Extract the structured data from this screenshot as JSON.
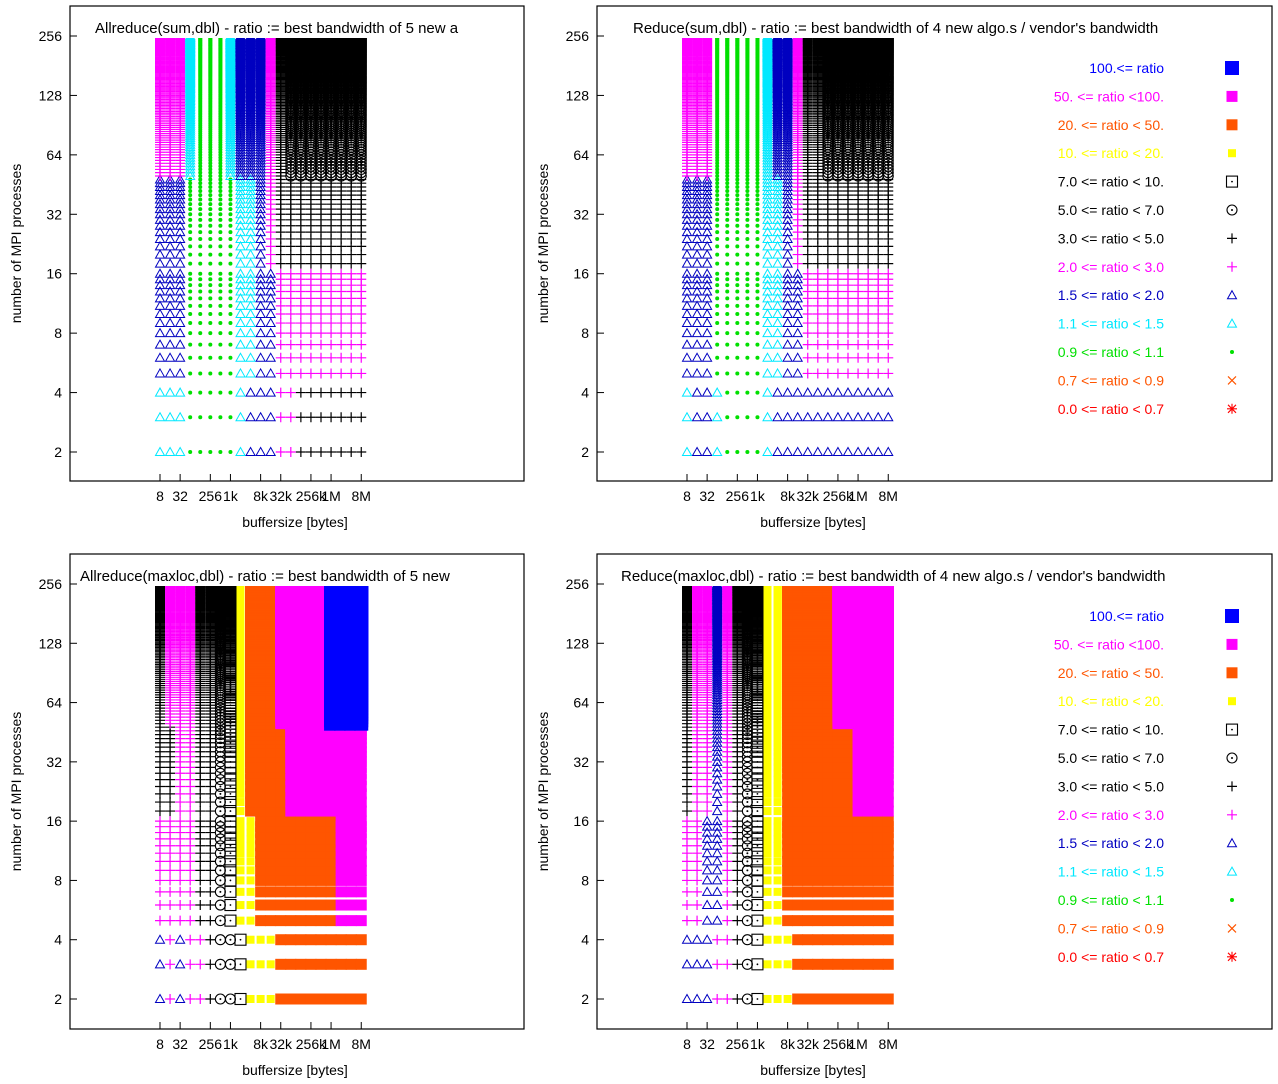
{
  "legend": [
    {
      "label": "100.<= ratio",
      "color": "#0000ff",
      "symbol": "filled-square-large"
    },
    {
      "label": "50. <= ratio <100.",
      "color": "#ff00ff",
      "symbol": "filled-square"
    },
    {
      "label": "20. <= ratio < 50.",
      "color": "#ff5500",
      "symbol": "filled-square"
    },
    {
      "label": "10. <= ratio < 20.",
      "color": "#ffff00",
      "symbol": "filled-square-small"
    },
    {
      "label": "7.0 <= ratio < 10.",
      "color": "#000000",
      "symbol": "dotted-box"
    },
    {
      "label": "5.0 <= ratio < 7.0",
      "color": "#000000",
      "symbol": "circle-dot"
    },
    {
      "label": "3.0 <= ratio < 5.0",
      "color": "#000000",
      "symbol": "plus"
    },
    {
      "label": "2.0 <= ratio < 3.0",
      "color": "#ff00ff",
      "symbol": "plus"
    },
    {
      "label": "1.5 <= ratio < 2.0",
      "color": "#0000c0",
      "symbol": "triangle"
    },
    {
      "label": "1.1 <= ratio < 1.5",
      "color": "#00e8ff",
      "symbol": "triangle"
    },
    {
      "label": "0.9 <= ratio < 1.1",
      "color": "#00e000",
      "symbol": "dot"
    },
    {
      "label": "0.7 <= ratio < 0.9",
      "color": "#ff5500",
      "symbol": "cross"
    },
    {
      "label": "0.0 <= ratio < 0.7",
      "color": "#ff0000",
      "symbol": "star"
    }
  ],
  "chart_data": [
    {
      "type": "scatter",
      "title": "Allreduce(sum,dbl)  -  ratio := best bandwidth of 5 new a",
      "xlabel": "buffersize [bytes]",
      "ylabel": "number of MPI processes",
      "xscale": "log2",
      "yscale": "log2",
      "xticks": [
        "8",
        "32",
        "256",
        "1k",
        "8k",
        "32k",
        "256k",
        "1M",
        "8M"
      ],
      "yticks": [
        "2",
        "4",
        "8",
        "16",
        "32",
        "64",
        "128",
        "256"
      ],
      "x": [
        "8",
        "16",
        "32",
        "64",
        "128",
        "256",
        "512",
        "1k",
        "2k",
        "4k",
        "8k",
        "16k",
        "32k",
        "64k",
        "128k",
        "256k",
        "512k",
        "1M",
        "2M",
        "4M",
        "8M"
      ],
      "bands": [
        {
          "p_max": 4,
          "classes": [
            "1.1-1.5",
            "1.1-1.5",
            "1.1-1.5",
            "0.9-1.1",
            "0.9-1.1",
            "0.9-1.1",
            "0.9-1.1",
            "0.9-1.1",
            "1.1-1.5",
            "1.5-2.0",
            "1.5-2.0",
            "1.5-2.0",
            "2.0-3.0",
            "2.0-3.0",
            "3.0-5.0",
            "3.0-5.0",
            "3.0-5.0",
            "3.0-5.0",
            "3.0-5.0",
            "3.0-5.0",
            "3.0-5.0"
          ]
        },
        {
          "p_max": 16,
          "classes": [
            "1.5-2.0",
            "1.5-2.0",
            "1.5-2.0",
            "0.9-1.1",
            "0.9-1.1",
            "0.9-1.1",
            "0.9-1.1",
            "0.9-1.1",
            "1.1-1.5",
            "1.1-1.5",
            "1.5-2.0",
            "1.5-2.0",
            "2.0-3.0",
            "2.0-3.0",
            "2.0-3.0",
            "2.0-3.0",
            "2.0-3.0",
            "2.0-3.0",
            "2.0-3.0",
            "2.0-3.0",
            "2.0-3.0"
          ]
        },
        {
          "p_max": 48,
          "classes": [
            "1.5-2.0",
            "1.5-2.0",
            "1.5-2.0",
            "0.9-1.1",
            "0.9-1.1",
            "0.9-1.1",
            "0.9-1.1",
            "0.9-1.1",
            "1.1-1.5",
            "1.1-1.5",
            "1.5-2.0",
            "2.0-3.0",
            "3.0-5.0",
            "3.0-5.0",
            "3.0-5.0",
            "3.0-5.0",
            "3.0-5.0",
            "3.0-5.0",
            "3.0-5.0",
            "3.0-5.0",
            "3.0-5.0"
          ]
        },
        {
          "p_max": 256,
          "classes": [
            "2.0-3.0",
            "2.0-3.0",
            "2.0-3.0",
            "1.1-1.5",
            "0.9-1.1",
            "0.9-1.1",
            "0.9-1.1",
            "1.1-1.5",
            "1.5-2.0",
            "1.5-2.0",
            "1.5-2.0",
            "2.0-3.0",
            "3.0-5.0",
            "5.0-7.0",
            "5.0-7.0",
            "5.0-7.0",
            "5.0-7.0",
            "5.0-7.0",
            "5.0-7.0",
            "5.0-7.0",
            "5.0-7.0"
          ]
        }
      ]
    },
    {
      "type": "scatter",
      "title": "Reduce(sum,dbl)  -  ratio := best bandwidth of 4 new algo.s / vendor's bandwidth",
      "xlabel": "buffersize [bytes]",
      "ylabel": "number of MPI processes",
      "xscale": "log2",
      "yscale": "log2",
      "xticks": [
        "8",
        "32",
        "256",
        "1k",
        "8k",
        "32k",
        "256k",
        "1M",
        "8M"
      ],
      "yticks": [
        "2",
        "4",
        "8",
        "16",
        "32",
        "64",
        "128",
        "256"
      ],
      "x": [
        "8",
        "16",
        "32",
        "64",
        "128",
        "256",
        "512",
        "1k",
        "2k",
        "4k",
        "8k",
        "16k",
        "32k",
        "64k",
        "128k",
        "256k",
        "512k",
        "1M",
        "2M",
        "4M",
        "8M"
      ],
      "bands": [
        {
          "p_max": 4,
          "classes": [
            "1.1-1.5",
            "1.5-2.0",
            "1.5-2.0",
            "1.1-1.5",
            "0.9-1.1",
            "0.9-1.1",
            "0.9-1.1",
            "0.9-1.1",
            "1.1-1.5",
            "1.5-2.0",
            "1.5-2.0",
            "1.5-2.0",
            "1.5-2.0",
            "1.5-2.0",
            "1.5-2.0",
            "1.5-2.0",
            "1.5-2.0",
            "1.5-2.0",
            "1.5-2.0",
            "1.5-2.0",
            "1.5-2.0"
          ]
        },
        {
          "p_max": 16,
          "classes": [
            "1.5-2.0",
            "1.5-2.0",
            "1.5-2.0",
            "0.9-1.1",
            "0.9-1.1",
            "0.9-1.1",
            "0.9-1.1",
            "0.9-1.1",
            "1.1-1.5",
            "1.1-1.5",
            "1.5-2.0",
            "1.5-2.0",
            "2.0-3.0",
            "2.0-3.0",
            "2.0-3.0",
            "2.0-3.0",
            "2.0-3.0",
            "2.0-3.0",
            "2.0-3.0",
            "2.0-3.0",
            "2.0-3.0"
          ]
        },
        {
          "p_max": 48,
          "classes": [
            "1.5-2.0",
            "1.5-2.0",
            "1.5-2.0",
            "0.9-1.1",
            "0.9-1.1",
            "0.9-1.1",
            "0.9-1.1",
            "0.9-1.1",
            "1.1-1.5",
            "1.1-1.5",
            "1.5-2.0",
            "2.0-3.0",
            "3.0-5.0",
            "3.0-5.0",
            "3.0-5.0",
            "3.0-5.0",
            "3.0-5.0",
            "3.0-5.0",
            "3.0-5.0",
            "3.0-5.0",
            "3.0-5.0"
          ]
        },
        {
          "p_max": 256,
          "classes": [
            "2.0-3.0",
            "2.0-3.0",
            "2.0-3.0",
            "0.9-1.1",
            "0.9-1.1",
            "0.9-1.1",
            "0.9-1.1",
            "0.9-1.1",
            "1.1-1.5",
            "1.5-2.0",
            "1.5-2.0",
            "2.0-3.0",
            "3.0-5.0",
            "3.0-5.0",
            "5.0-7.0",
            "5.0-7.0",
            "5.0-7.0",
            "5.0-7.0",
            "5.0-7.0",
            "5.0-7.0",
            "5.0-7.0"
          ]
        }
      ]
    },
    {
      "type": "scatter",
      "title": "Allreduce(maxloc,dbl)  -  ratio := best bandwidth of 5 new",
      "xlabel": "buffersize [bytes]",
      "ylabel": "number of MPI processes",
      "xscale": "log2",
      "yscale": "log2",
      "xticks": [
        "8",
        "32",
        "256",
        "1k",
        "8k",
        "32k",
        "256k",
        "1M",
        "8M"
      ],
      "yticks": [
        "2",
        "4",
        "8",
        "16",
        "32",
        "64",
        "128",
        "256"
      ],
      "x": [
        "8",
        "16",
        "32",
        "64",
        "128",
        "256",
        "512",
        "1k",
        "2k",
        "4k",
        "8k",
        "16k",
        "32k",
        "64k",
        "128k",
        "256k",
        "512k",
        "1M",
        "2M",
        "4M",
        "8M"
      ],
      "bands": [
        {
          "p_max": 4,
          "classes": [
            "1.5-2.0",
            "2.0-3.0",
            "1.5-2.0",
            "2.0-3.0",
            "2.0-3.0",
            "3.0-5.0",
            "5.0-7.0",
            "5.0-7.0",
            "7.0-10.",
            "10.-20.",
            "10.-20.",
            "10.-20.",
            "20.-50.",
            "20.-50.",
            "20.-50.",
            "20.-50.",
            "20.-50.",
            "20.-50.",
            "20.-50.",
            "20.-50.",
            "20.-50."
          ]
        },
        {
          "p_max": 16,
          "classes": [
            "2.0-3.0",
            "2.0-3.0",
            "2.0-3.0",
            "2.0-3.0",
            "3.0-5.0",
            "3.0-5.0",
            "5.0-7.0",
            "7.0-10.",
            "10.-20.",
            "10.-20.",
            "20.-50.",
            "20.-50.",
            "20.-50.",
            "20.-50.",
            "20.-50.",
            "20.-50.",
            "20.-50.",
            "20.-50.",
            "50.-100.",
            "50.-100.",
            "50.-100."
          ]
        },
        {
          "p_max": 48,
          "classes": [
            "3.0-5.0",
            "3.0-5.0",
            "2.0-3.0",
            "2.0-3.0",
            "3.0-5.0",
            "3.0-5.0",
            "5.0-7.0",
            "7.0-10.",
            "10.-20.",
            "20.-50.",
            "20.-50.",
            "20.-50.",
            "20.-50.",
            "50.-100.",
            "50.-100.",
            "50.-100.",
            "50.-100.",
            "50.-100.",
            "50.-100.",
            "50.-100.",
            "50.-100."
          ]
        },
        {
          "p_max": 256,
          "classes": [
            "3.0-5.0",
            "2.0-3.0",
            "2.0-3.0",
            "2.0-3.0",
            "3.0-5.0",
            "3.0-5.0",
            "5.0-7.0",
            "7.0-10.",
            "10.-20.",
            "20.-50.",
            "20.-50.",
            "20.-50.",
            "50.-100.",
            "50.-100.",
            "50.-100.",
            "50.-100.",
            "50.-100.",
            "100.-",
            "100.-",
            "100.-",
            "100.-"
          ]
        }
      ]
    },
    {
      "type": "scatter",
      "title": "Reduce(maxloc,dbl)  -  ratio := best bandwidth of 4 new algo.s / vendor's bandwidth",
      "xlabel": "buffersize [bytes]",
      "ylabel": "number of MPI processes",
      "xscale": "log2",
      "yscale": "log2",
      "xticks": [
        "8",
        "32",
        "256",
        "1k",
        "8k",
        "32k",
        "256k",
        "1M",
        "8M"
      ],
      "yticks": [
        "2",
        "4",
        "8",
        "16",
        "32",
        "64",
        "128",
        "256"
      ],
      "x": [
        "8",
        "16",
        "32",
        "64",
        "128",
        "256",
        "512",
        "1k",
        "2k",
        "4k",
        "8k",
        "16k",
        "32k",
        "64k",
        "128k",
        "256k",
        "512k",
        "1M",
        "2M",
        "4M",
        "8M"
      ],
      "bands": [
        {
          "p_max": 4,
          "classes": [
            "1.5-2.0",
            "1.5-2.0",
            "1.5-2.0",
            "2.0-3.0",
            "2.0-3.0",
            "3.0-5.0",
            "5.0-7.0",
            "7.0-10.",
            "10.-20.",
            "10.-20.",
            "10.-20.",
            "20.-50.",
            "20.-50.",
            "20.-50.",
            "20.-50.",
            "20.-50.",
            "20.-50.",
            "20.-50.",
            "20.-50.",
            "20.-50.",
            "20.-50."
          ]
        },
        {
          "p_max": 16,
          "classes": [
            "2.0-3.0",
            "2.0-3.0",
            "1.5-2.0",
            "1.5-2.0",
            "2.0-3.0",
            "3.0-5.0",
            "5.0-7.0",
            "7.0-10.",
            "10.-20.",
            "10.-20.",
            "20.-50.",
            "20.-50.",
            "20.-50.",
            "20.-50.",
            "20.-50.",
            "20.-50.",
            "20.-50.",
            "20.-50.",
            "20.-50.",
            "20.-50.",
            "20.-50."
          ]
        },
        {
          "p_max": 48,
          "classes": [
            "3.0-5.0",
            "2.0-3.0",
            "2.0-3.0",
            "1.5-2.0",
            "2.0-3.0",
            "3.0-5.0",
            "5.0-7.0",
            "7.0-10.",
            "10.-20.",
            "10.-20.",
            "20.-50.",
            "20.-50.",
            "20.-50.",
            "20.-50.",
            "20.-50.",
            "20.-50.",
            "20.-50.",
            "50.-100.",
            "50.-100.",
            "50.-100.",
            "50.-100."
          ]
        },
        {
          "p_max": 256,
          "classes": [
            "3.0-5.0",
            "2.0-3.0",
            "2.0-3.0",
            "1.5-2.0",
            "2.0-3.0",
            "3.0-5.0",
            "5.0-7.0",
            "7.0-10.",
            "10.-20.",
            "10.-20.",
            "20.-50.",
            "20.-50.",
            "20.-50.",
            "20.-50.",
            "20.-50.",
            "50.-100.",
            "50.-100.",
            "50.-100.",
            "50.-100.",
            "50.-100.",
            "50.-100."
          ]
        }
      ]
    }
  ]
}
